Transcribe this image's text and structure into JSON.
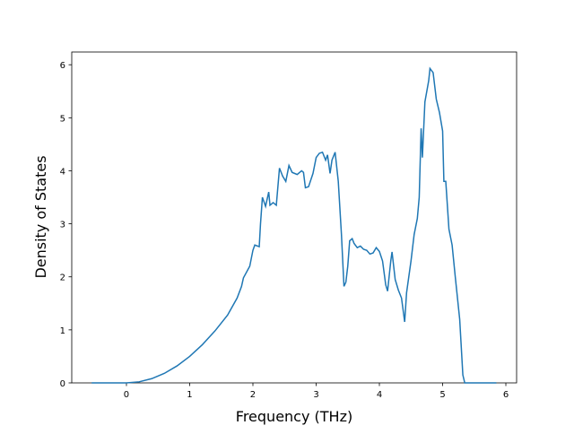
{
  "chart_data": {
    "type": "line",
    "xlabel": "Frequency (THz)",
    "ylabel": "Density of States",
    "x": [
      -0.55,
      0,
      0.2,
      0.4,
      0.6,
      0.8,
      1.0,
      1.2,
      1.4,
      1.6,
      1.75,
      1.82,
      1.85,
      1.95,
      2.0,
      2.03,
      2.1,
      2.12,
      2.15,
      2.2,
      2.25,
      2.27,
      2.32,
      2.37,
      2.42,
      2.47,
      2.52,
      2.57,
      2.62,
      2.7,
      2.77,
      2.8,
      2.83,
      2.88,
      2.95,
      3.0,
      3.05,
      3.1,
      3.15,
      3.18,
      3.22,
      3.25,
      3.3,
      3.35,
      3.4,
      3.44,
      3.47,
      3.5,
      3.53,
      3.57,
      3.6,
      3.65,
      3.7,
      3.75,
      3.8,
      3.85,
      3.9,
      3.95,
      4.0,
      4.05,
      4.1,
      4.13,
      4.18,
      4.2,
      4.25,
      4.3,
      4.35,
      4.4,
      4.43,
      4.5,
      4.55,
      4.6,
      4.63,
      4.66,
      4.68,
      4.72,
      4.78,
      4.8,
      4.85,
      4.9,
      4.95,
      5.0,
      5.02,
      5.05,
      5.1,
      5.15,
      5.2,
      5.27,
      5.32,
      5.35,
      5.85
    ],
    "series": [
      {
        "color": "#1f77b4",
        "values": [
          0,
          0,
          0.02,
          0.08,
          0.18,
          0.32,
          0.5,
          0.72,
          0.98,
          1.28,
          1.6,
          1.82,
          1.98,
          2.2,
          2.5,
          2.6,
          2.57,
          3.0,
          3.5,
          3.33,
          3.6,
          3.35,
          3.4,
          3.35,
          4.05,
          3.9,
          3.8,
          4.1,
          3.97,
          3.93,
          4.0,
          3.97,
          3.68,
          3.7,
          3.95,
          4.25,
          4.33,
          4.35,
          4.2,
          4.3,
          3.95,
          4.2,
          4.35,
          3.8,
          2.8,
          1.82,
          1.9,
          2.2,
          2.68,
          2.72,
          2.63,
          2.55,
          2.58,
          2.52,
          2.5,
          2.43,
          2.45,
          2.55,
          2.48,
          2.3,
          1.85,
          1.73,
          2.3,
          2.47,
          1.95,
          1.75,
          1.6,
          1.15,
          1.7,
          2.3,
          2.8,
          3.1,
          3.5,
          4.8,
          4.25,
          5.3,
          5.7,
          5.93,
          5.85,
          5.35,
          5.1,
          4.75,
          3.8,
          3.8,
          2.9,
          2.6,
          2.0,
          1.2,
          0.15,
          0,
          0
        ]
      }
    ],
    "xlim": [
      -0.865,
      6.17
    ],
    "ylim": [
      0,
      6.24
    ],
    "xticks": [
      0,
      1,
      2,
      3,
      4,
      5,
      6
    ],
    "yticks": [
      0,
      1,
      2,
      3,
      4,
      5,
      6
    ]
  }
}
